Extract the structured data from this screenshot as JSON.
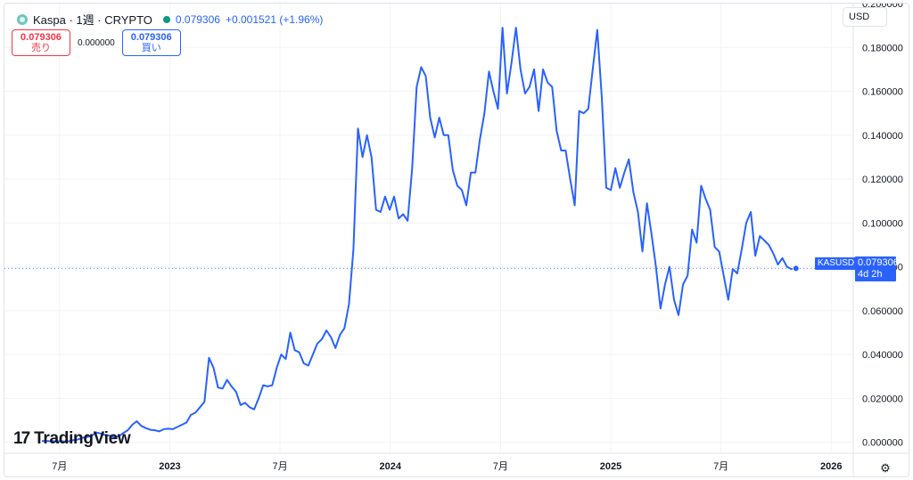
{
  "header": {
    "symbol_title": "Kaspa · 1週 · CRYPTO",
    "price": "0.079306",
    "change": "+0.001521 (+1.96%)"
  },
  "trade": {
    "sell_price": "0.079306",
    "sell_label": "売り",
    "spread": "0.000000",
    "buy_price": "0.079306",
    "buy_label": "買い"
  },
  "currency": "USD",
  "logo": {
    "text": "TradingView",
    "icon_text": "17"
  },
  "price_tag": {
    "symbol": "KASUSD",
    "value": "0.079306",
    "countdown": "4d 2h"
  },
  "colors": {
    "line": "#2962ff",
    "grid": "#f0f3fa",
    "axis_text": "#131722",
    "up": "#089981",
    "sell": "#f23645"
  },
  "chart_data": {
    "type": "line",
    "series": [
      {
        "values": [
          0.0006,
          0.0006,
          0.0005,
          0.0005,
          0.0005,
          0.0004,
          0.0005,
          0.001,
          0.0013,
          0.0021,
          0.0024,
          0.0029,
          0.0045,
          0.004,
          0.0033,
          0.003,
          0.0025,
          0.0027,
          0.0042,
          0.0055,
          0.008,
          0.0096,
          0.0075,
          0.0065,
          0.0057,
          0.0055,
          0.005,
          0.006,
          0.0062,
          0.006,
          0.007,
          0.008,
          0.009,
          0.0125,
          0.0135,
          0.016,
          0.0185,
          0.0385,
          0.034,
          0.025,
          0.0245,
          0.0285,
          0.0255,
          0.023,
          0.017,
          0.018,
          0.016,
          0.015,
          0.02,
          0.026,
          0.0255,
          0.026,
          0.034,
          0.04,
          0.038,
          0.05,
          0.042,
          0.041,
          0.036,
          0.035,
          0.04,
          0.045,
          0.047,
          0.051,
          0.048,
          0.043,
          0.049,
          0.052,
          0.063,
          0.088,
          0.143,
          0.13,
          0.14,
          0.13,
          0.106,
          0.105,
          0.112,
          0.106,
          0.112,
          0.102,
          0.104,
          0.101,
          0.125,
          0.162,
          0.171,
          0.167,
          0.148,
          0.139,
          0.148,
          0.14,
          0.14,
          0.124,
          0.117,
          0.115,
          0.108,
          0.123,
          0.123,
          0.138,
          0.15,
          0.169,
          0.16,
          0.152,
          0.189,
          0.159,
          0.173,
          0.189,
          0.17,
          0.159,
          0.162,
          0.17,
          0.151,
          0.17,
          0.164,
          0.162,
          0.142,
          0.133,
          0.133,
          0.12,
          0.108,
          0.151,
          0.15,
          0.152,
          0.17,
          0.188,
          0.157,
          0.116,
          0.115,
          0.125,
          0.116,
          0.123,
          0.129,
          0.114,
          0.105,
          0.087,
          0.109,
          0.095,
          0.08,
          0.061,
          0.072,
          0.08,
          0.065,
          0.058,
          0.072,
          0.076,
          0.097,
          0.091,
          0.117,
          0.111,
          0.106,
          0.089,
          0.087,
          0.076,
          0.065,
          0.079,
          0.077,
          0.088,
          0.1,
          0.105,
          0.085,
          0.094,
          0.092,
          0.09,
          0.086,
          0.081,
          0.084,
          0.08,
          0.079,
          0.0793
        ]
      }
    ],
    "ylim": [
      -0.005,
      0.2
    ],
    "ylabels": [
      "0.200000",
      "0.180000",
      "0.160000",
      "0.140000",
      "0.120000",
      "0.100000",
      "0.080000",
      "0.060000",
      "0.040000",
      "0.020000",
      "0.000000"
    ],
    "xlabels": [
      "7月",
      "2023",
      "7月",
      "2024",
      "7月",
      "2025",
      "7月",
      "2026"
    ],
    "xlabel_positions": [
      2022.5,
      2023.0,
      2023.5,
      2024.0,
      2024.5,
      2025.0,
      2025.5,
      2026.0
    ],
    "x_start": 2022.42,
    "x_end": 2025.84,
    "xlim": [
      2022.25,
      2026.1
    ],
    "last_value": 0.079306,
    "grid": true
  }
}
